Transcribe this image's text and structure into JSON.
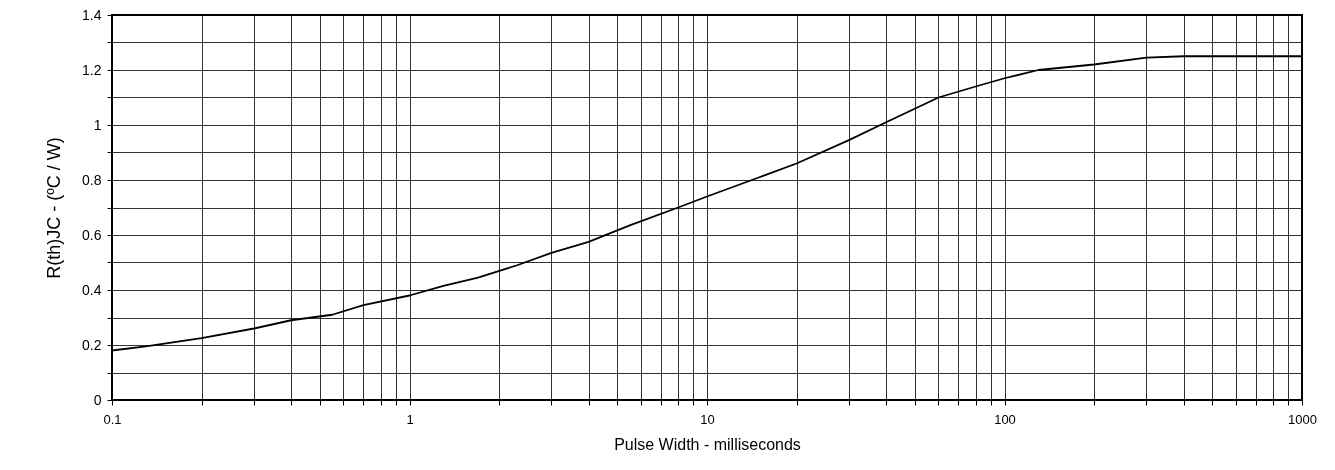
{
  "chart_data": {
    "type": "line",
    "xlabel": "Pulse Width - milliseconds",
    "ylabel": "R(th)JC - (ºC / W)",
    "log": "x",
    "x": [
      0.1,
      0.13,
      0.2,
      0.3,
      0.4,
      0.55,
      0.7,
      1,
      1.3,
      1.7,
      2.3,
      3,
      4,
      5.5,
      8,
      10,
      15,
      20,
      30,
      40,
      60,
      80,
      100,
      130,
      200,
      300,
      400,
      1000
    ],
    "series": [
      {
        "color": "#000000",
        "values": [
          0.18,
          0.195,
          0.225,
          0.26,
          0.29,
          0.31,
          0.345,
          0.38,
          0.415,
          0.445,
          0.49,
          0.535,
          0.575,
          0.635,
          0.7,
          0.74,
          0.81,
          0.86,
          0.945,
          1.01,
          1.1,
          1.14,
          1.17,
          1.2,
          1.22,
          1.245,
          1.25,
          1.25
        ]
      }
    ],
    "xlim": [
      0.1,
      1000
    ],
    "xticks": [
      0.1,
      {
        "value": 0.2,
        "label": null
      },
      {
        "value": 0.3,
        "label": null
      },
      {
        "value": 0.4,
        "label": null
      },
      {
        "value": 0.5,
        "label": null
      },
      {
        "value": 0.6,
        "label": null
      },
      {
        "value": 0.7,
        "label": null
      },
      {
        "value": 0.8,
        "label": null
      },
      {
        "value": 0.9,
        "label": null
      },
      1,
      {
        "value": 2,
        "label": null
      },
      {
        "value": 3,
        "label": null
      },
      {
        "value": 4,
        "label": null
      },
      {
        "value": 5,
        "label": null
      },
      {
        "value": 6,
        "label": null
      },
      {
        "value": 7,
        "label": null
      },
      {
        "value": 8,
        "label": null
      },
      {
        "value": 9,
        "label": null
      },
      10,
      {
        "value": 20,
        "label": null
      },
      {
        "value": 30,
        "label": null
      },
      {
        "value": 40,
        "label": null
      },
      {
        "value": 50,
        "label": null
      },
      {
        "value": 60,
        "label": null
      },
      {
        "value": 70,
        "label": null
      },
      {
        "value": 80,
        "label": null
      },
      {
        "value": 90,
        "label": null
      },
      100,
      {
        "value": 200,
        "label": null
      },
      {
        "value": 300,
        "label": null
      },
      {
        "value": 400,
        "label": null
      },
      {
        "value": 500,
        "label": null
      },
      {
        "value": 600,
        "label": null
      },
      {
        "value": 700,
        "label": null
      },
      {
        "value": 800,
        "label": null
      },
      {
        "value": 900,
        "label": null
      },
      1000
    ],
    "ylim": [
      0,
      1.4
    ],
    "yticks": [
      0,
      {
        "value": 0.1,
        "label": null
      },
      0.2,
      {
        "value": 0.3,
        "label": null
      },
      0.4,
      {
        "value": 0.5,
        "label": null
      },
      0.6,
      {
        "value": 0.7,
        "label": null
      },
      0.8,
      {
        "value": 0.9,
        "label": null
      },
      1,
      {
        "value": 1.1,
        "label": null
      },
      1.2,
      {
        "value": 1.3,
        "label": null
      },
      1.4
    ],
    "grid": true,
    "marker": "none",
    "line_style": "solid"
  }
}
